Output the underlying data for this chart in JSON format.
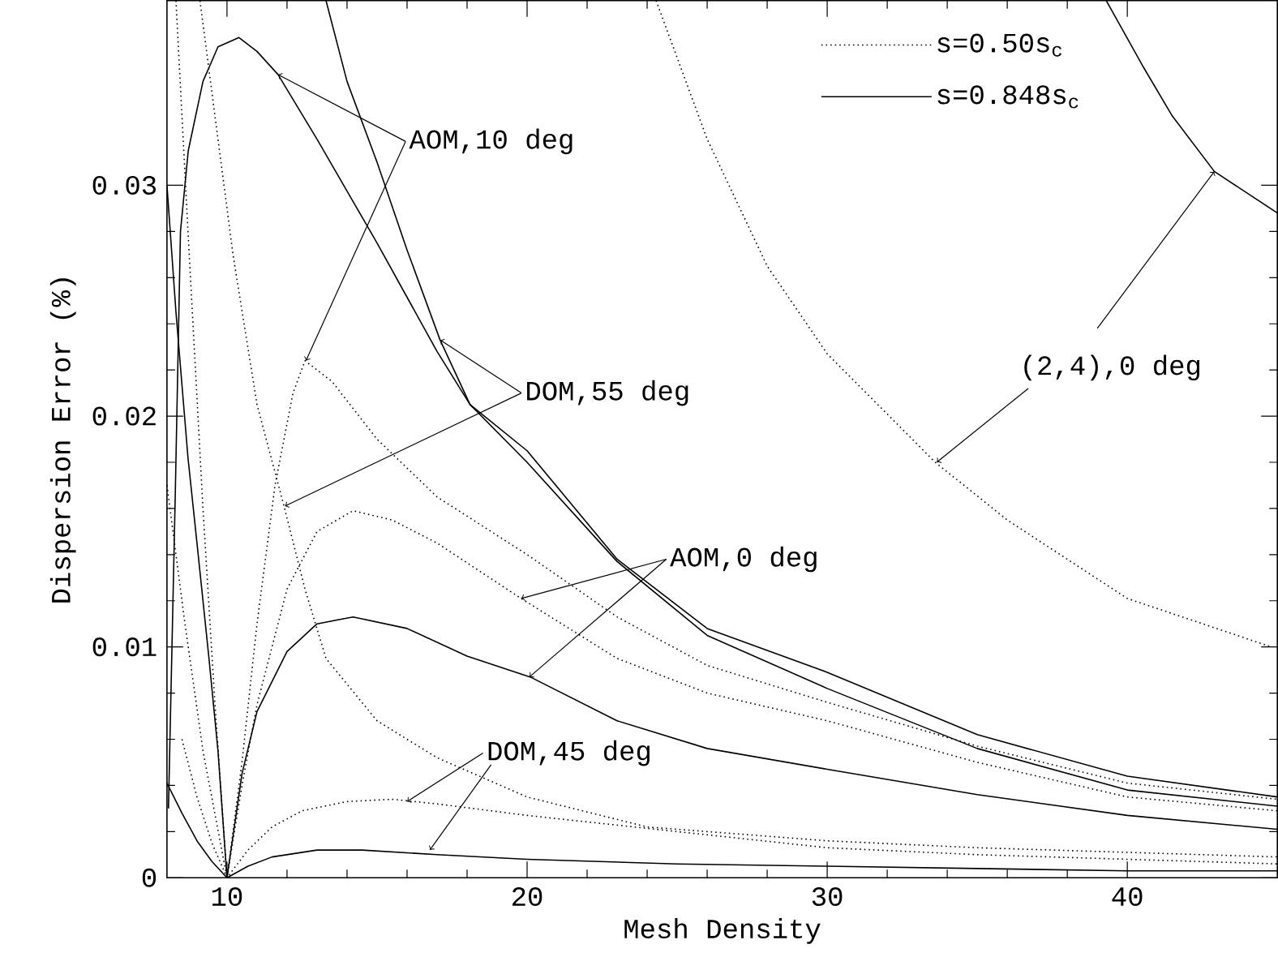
{
  "chart_data": {
    "type": "line",
    "xlabel": "Mesh Density",
    "ylabel": "Dispersion Error (%)",
    "xlim": [
      8,
      45
    ],
    "ylim": [
      0,
      0.038
    ],
    "xticks": [
      10,
      20,
      30,
      40
    ],
    "yticks": [
      0,
      0.01,
      0.02,
      0.03
    ],
    "legend": "top right",
    "series": [
      {
        "name": "s=0.50s$_{c}$",
        "color": "#000000",
        "line_style": "dotted",
        "x": [
          8.3,
          8.7,
          9.2,
          9.6,
          10,
          10.5,
          11,
          11.6,
          12.2,
          12.6,
          13.5,
          15,
          17,
          20,
          23,
          26,
          30,
          35,
          40,
          45
        ],
        "values": [
          0.038,
          0.028,
          0.016,
          0.0075,
          0,
          0.005,
          0.011,
          0.017,
          0.021,
          0.0224,
          0.0215,
          0.019,
          0.0165,
          0.014,
          0.0113,
          0.0092,
          0.0076,
          0.0057,
          0.0041,
          0.0034
        ]
      },
      {
        "color": "#000000",
        "line_style": "dotted",
        "x": [
          8,
          8.6,
          9.2,
          10,
          10.5,
          11,
          12,
          13,
          14.2,
          15.5,
          17,
          19.8,
          23,
          26,
          30,
          35,
          40,
          45
        ],
        "values": [
          0.017,
          0.011,
          0.0055,
          0,
          0.004,
          0.0075,
          0.0125,
          0.015,
          0.0159,
          0.0155,
          0.0145,
          0.0121,
          0.0095,
          0.008,
          0.0068,
          0.005,
          0.0035,
          0.0029
        ]
      },
      {
        "color": "#000000",
        "line_style": "dotted",
        "x": [
          9.1,
          9.6,
          10.2,
          11,
          11.9,
          12.6,
          13.3,
          15,
          17,
          20,
          24,
          30,
          35,
          40,
          45
        ],
        "values": [
          0.038,
          0.033,
          0.027,
          0.0205,
          0.0161,
          0.0125,
          0.0095,
          0.0068,
          0.0052,
          0.0035,
          0.0022,
          0.0016,
          0.0013,
          0.0011,
          0.0009
        ]
      },
      {
        "color": "#000000",
        "line_style": "dotted",
        "x": [
          8.5,
          9,
          9.5,
          10,
          10.7,
          11.5,
          12.5,
          14,
          15.5,
          17,
          20,
          25,
          30,
          35,
          40,
          45
        ],
        "values": [
          0.006,
          0.0035,
          0.0015,
          0,
          0.0012,
          0.0022,
          0.0029,
          0.0033,
          0.0034,
          0.0032,
          0.0027,
          0.002,
          0.0013,
          0.001,
          0.0008,
          0.0006
        ]
      },
      {
        "color": "#000000",
        "line_style": "dotted",
        "x": [
          24.3,
          26,
          28,
          30,
          33.6,
          36,
          40,
          44.8
        ],
        "values": [
          0.038,
          0.032,
          0.0265,
          0.0227,
          0.018,
          0.0155,
          0.0121,
          0.01
        ]
      },
      {
        "name": "s=0.848s$_{c}$",
        "color": "#000000",
        "line_style": "solid",
        "x": [
          8.05,
          8.28,
          8.45,
          8.71,
          9.2,
          9.7,
          10.4,
          11,
          11.7,
          13,
          15,
          17,
          18.1,
          20,
          23,
          26,
          30,
          35,
          40,
          45
        ],
        "values": [
          0.003,
          0.0168,
          0.028,
          0.0315,
          0.0345,
          0.036,
          0.0364,
          0.0358,
          0.0348,
          0.032,
          0.0275,
          0.0228,
          0.0205,
          0.0185,
          0.0138,
          0.0108,
          0.0089,
          0.0062,
          0.0044,
          0.0035
        ]
      },
      {
        "color": "#000000",
        "line_style": "solid",
        "x": [
          13.3,
          14,
          15,
          16,
          17.1,
          18.1,
          20,
          23,
          26,
          30,
          35,
          40,
          45
        ],
        "values": [
          0.038,
          0.0345,
          0.031,
          0.0272,
          0.0233,
          0.0205,
          0.018,
          0.0137,
          0.0105,
          0.0082,
          0.0056,
          0.0038,
          0.0031
        ]
      },
      {
        "color": "#000000",
        "line_style": "solid",
        "x": [
          8,
          8.3,
          8.7,
          9,
          9.4,
          9.7,
          10,
          10.5,
          11,
          12,
          13,
          14.2,
          16,
          18,
          20.1,
          23,
          26,
          30,
          35,
          40,
          45
        ],
        "values": [
          0.03,
          0.0245,
          0.0182,
          0.0145,
          0.0095,
          0.0055,
          0,
          0.0045,
          0.0072,
          0.0098,
          0.011,
          0.0113,
          0.0108,
          0.0096,
          0.0087,
          0.0068,
          0.0056,
          0.0047,
          0.0036,
          0.0027,
          0.0021
        ]
      },
      {
        "color": "#000000",
        "line_style": "solid",
        "x": [
          8,
          8.5,
          9,
          9.5,
          10,
          10.7,
          11.5,
          13,
          14.5,
          17,
          20,
          25,
          30,
          35,
          40,
          45
        ],
        "values": [
          0.0041,
          0.0028,
          0.0016,
          0.0007,
          0,
          0.0005,
          0.0009,
          0.0012,
          0.0012,
          0.001,
          0.0008,
          0.0006,
          0.0005,
          0.0004,
          0.0003,
          0.0003
        ]
      },
      {
        "color": "#000000",
        "line_style": "solid",
        "x": [
          39.3,
          40.5,
          41.5,
          42.9,
          45
        ],
        "values": [
          0.038,
          0.0352,
          0.033,
          0.0306,
          0.0288
        ]
      }
    ],
    "annotations": [
      {
        "text": "AOM,10 deg",
        "x": 11.7,
        "y": 0.0348
      },
      {
        "text": "DOM,55 deg",
        "x": 17.1,
        "y": 0.0233
      },
      {
        "text": "AOM,0 deg",
        "x": 19.8,
        "y": 0.0121
      },
      {
        "text": "DOM,45 deg",
        "x": 16,
        "y": 0.0033
      },
      {
        "text": "(2,4),0 deg",
        "x": 42.9,
        "y": 0.0306
      }
    ]
  }
}
